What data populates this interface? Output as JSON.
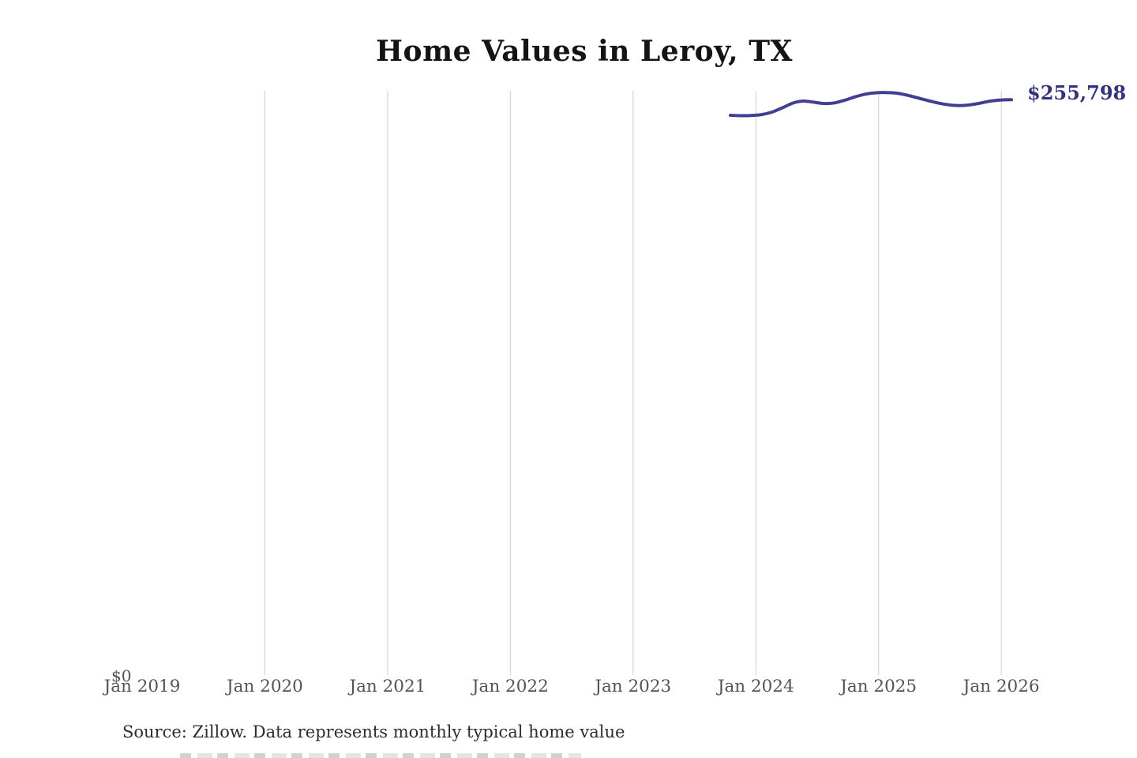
{
  "title": "Home Values in Leroy, TX",
  "y_axis": {
    "zero_label": "$0"
  },
  "x_axis": {
    "ticks": [
      "Jan 2019",
      "Jan 2020",
      "Jan 2021",
      "Jan 2022",
      "Jan 2023",
      "Jan 2024",
      "Jan 2025",
      "Jan 2026"
    ]
  },
  "latest_value_label": "$255,798",
  "source_note": "Source: Zillow. Data represents monthly typical home value",
  "colors": {
    "line": "#423e94",
    "value_label": "#34337d",
    "gridline": "#cdcdcd",
    "tick_text": "#545454",
    "title_text": "#141414",
    "source_text": "#2d2d2d"
  },
  "chart_data": {
    "type": "line",
    "title": "Home Values in Leroy, TX",
    "series_name": "Typical home value (monthly)",
    "x": [
      "Oct 2023",
      "Nov 2023",
      "Dec 2023",
      "Jan 2024",
      "Feb 2024",
      "Mar 2024",
      "Apr 2024",
      "May 2024",
      "Jun 2024",
      "Jul 2024",
      "Aug 2024",
      "Sep 2024",
      "Oct 2024",
      "Nov 2024",
      "Dec 2024",
      "Jan 2025",
      "Feb 2025",
      "Mar 2025",
      "Apr 2025",
      "May 2025",
      "Jun 2025",
      "Jul 2025",
      "Aug 2025",
      "Sep 2025",
      "Oct 2025",
      "Nov 2025",
      "Dec 2025",
      "Jan 2026"
    ],
    "values": [
      248900,
      248700,
      248800,
      249200,
      250300,
      252200,
      254300,
      255200,
      254700,
      254100,
      254400,
      255600,
      257100,
      258300,
      258900,
      259000,
      258700,
      257800,
      256600,
      255400,
      254300,
      253500,
      253200,
      253500,
      254300,
      255200,
      255700,
      255798
    ],
    "end_value": 255798,
    "end_label": "$255,798",
    "xlabel": "",
    "ylabel": "",
    "ylim": [
      0,
      340000
    ],
    "x_tick_labels": [
      "Jan 2019",
      "Jan 2020",
      "Jan 2021",
      "Jan 2022",
      "Jan 2023",
      "Jan 2024",
      "Jan 2025",
      "Jan 2026"
    ],
    "y_tick_labels": [
      "$0"
    ],
    "gridlines": "vertical-yearly",
    "legend": "none",
    "annotation": "end-of-line value label at right"
  }
}
